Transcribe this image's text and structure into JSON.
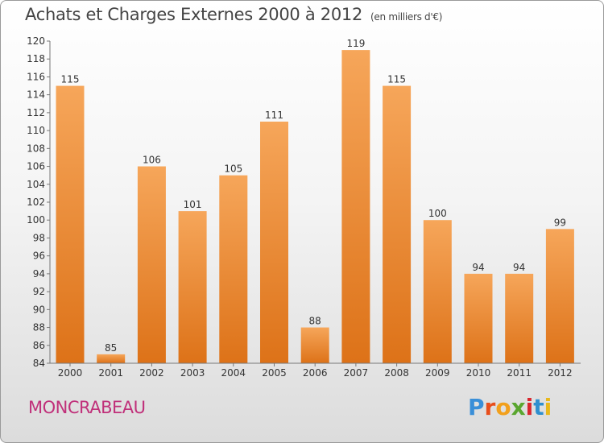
{
  "title": "Achats et Charges Externes 2000 à 2012",
  "subtitle": "(en milliers d'€)",
  "commune": "MONCRABEAU",
  "brand": {
    "letters": [
      "P",
      "r",
      "o",
      "x",
      "i",
      "t",
      "i"
    ],
    "colors": [
      "#3a8fd8",
      "#e84e1b",
      "#f2a01c",
      "#5aa62f",
      "#d9262e",
      "#2f8fcf",
      "#e8b81b"
    ]
  },
  "colors": {
    "bar_top": "#f6a65a",
    "bar_bottom": "#dd7218",
    "axis": "#777777",
    "commune": "#c0307a"
  },
  "chart_data": {
    "type": "bar",
    "categories": [
      "2000",
      "2001",
      "2002",
      "2003",
      "2004",
      "2005",
      "2006",
      "2007",
      "2008",
      "2009",
      "2010",
      "2011",
      "2012"
    ],
    "values": [
      115,
      85,
      106,
      101,
      105,
      111,
      88,
      119,
      115,
      100,
      94,
      94,
      99
    ],
    "title": "Achats et Charges Externes 2000 à 2012",
    "ylim": [
      84,
      120
    ],
    "yticks": [
      84,
      86,
      88,
      90,
      92,
      94,
      96,
      98,
      100,
      102,
      104,
      106,
      108,
      110,
      112,
      114,
      116,
      118,
      120
    ],
    "grid": false,
    "data_labels": true
  }
}
